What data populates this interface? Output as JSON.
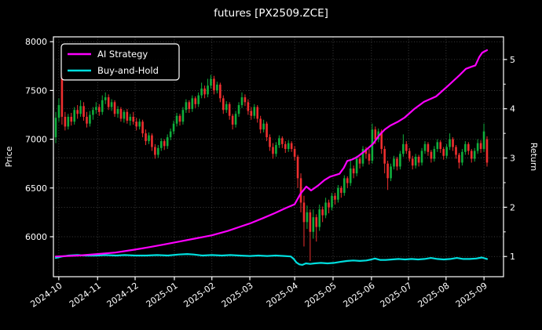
{
  "figure": {
    "title": "futures [PX2509.ZCE]",
    "background_color": "#000000",
    "text_color": "#ffffff",
    "grid_color": "#777777"
  },
  "chart_data": {
    "type": "candlestick+line",
    "title": "futures [PX2509.ZCE]",
    "grid": true,
    "legend_position": "upper-left",
    "y_left": {
      "label": "Price",
      "ticks": [
        6000,
        6500,
        7000,
        7500,
        8000
      ],
      "lim": [
        5590,
        8050
      ]
    },
    "y_right": {
      "label": "Return",
      "ticks": [
        1,
        2,
        3,
        4,
        5
      ],
      "minor_ticks": [
        1.5,
        2.5,
        3.5,
        4.5
      ],
      "lim": [
        0.59,
        5.46
      ]
    },
    "x_ticks": [
      {
        "label": "2024-10",
        "f": 0.007
      },
      {
        "label": "2024-11",
        "f": 0.097
      },
      {
        "label": "2024-12",
        "f": 0.184
      },
      {
        "label": "2025-01",
        "f": 0.275
      },
      {
        "label": "2025-02",
        "f": 0.362
      },
      {
        "label": "2025-03",
        "f": 0.45
      },
      {
        "label": "2025-04",
        "f": 0.554
      },
      {
        "label": "2025-05",
        "f": 0.643
      },
      {
        "label": "2025-06",
        "f": 0.732
      },
      {
        "label": "2025-07",
        "f": 0.818
      },
      {
        "label": "2025-08",
        "f": 0.905
      },
      {
        "label": "2025-09",
        "f": 0.993
      }
    ],
    "candle_colors": {
      "up": "#0fae3c",
      "down": "#ee2f2f"
    },
    "candles_ohlc": [
      [
        7020,
        7280,
        6960,
        7220
      ],
      [
        7220,
        7420,
        7180,
        7350
      ],
      [
        7650,
        7680,
        7150,
        7230
      ],
      [
        7230,
        7280,
        7090,
        7130
      ],
      [
        7130,
        7260,
        7100,
        7230
      ],
      [
        7230,
        7270,
        7140,
        7180
      ],
      [
        7180,
        7330,
        7150,
        7300
      ],
      [
        7300,
        7350,
        7210,
        7260
      ],
      [
        7260,
        7400,
        7230,
        7340
      ],
      [
        7340,
        7380,
        7190,
        7230
      ],
      [
        7230,
        7280,
        7120,
        7160
      ],
      [
        7160,
        7290,
        7130,
        7250
      ],
      [
        7250,
        7330,
        7200,
        7300
      ],
      [
        7300,
        7380,
        7260,
        7330
      ],
      [
        7330,
        7360,
        7240,
        7280
      ],
      [
        7280,
        7450,
        7250,
        7400
      ],
      [
        7400,
        7480,
        7360,
        7430
      ],
      [
        7430,
        7460,
        7300,
        7330
      ],
      [
        7330,
        7410,
        7290,
        7380
      ],
      [
        7380,
        7400,
        7230,
        7260
      ],
      [
        7260,
        7340,
        7220,
        7310
      ],
      [
        7310,
        7330,
        7180,
        7210
      ],
      [
        7210,
        7300,
        7170,
        7280
      ],
      [
        7280,
        7310,
        7160,
        7190
      ],
      [
        7190,
        7260,
        7140,
        7230
      ],
      [
        7230,
        7280,
        7150,
        7180
      ],
      [
        7180,
        7220,
        7090,
        7130
      ],
      [
        7130,
        7210,
        7100,
        7180
      ],
      [
        7180,
        7200,
        7020,
        7060
      ],
      [
        7060,
        7100,
        6940,
        6980
      ],
      [
        6980,
        7070,
        6950,
        7040
      ],
      [
        7040,
        7060,
        6880,
        6920
      ],
      [
        6920,
        6950,
        6800,
        6840
      ],
      [
        6840,
        6940,
        6810,
        6910
      ],
      [
        6910,
        7010,
        6880,
        6980
      ],
      [
        6980,
        7000,
        6890,
        6930
      ],
      [
        6930,
        7050,
        6900,
        7020
      ],
      [
        7020,
        7110,
        6990,
        7080
      ],
      [
        7080,
        7190,
        7050,
        7160
      ],
      [
        7160,
        7270,
        7130,
        7240
      ],
      [
        7240,
        7260,
        7140,
        7180
      ],
      [
        7180,
        7330,
        7150,
        7300
      ],
      [
        7300,
        7410,
        7270,
        7380
      ],
      [
        7380,
        7400,
        7270,
        7310
      ],
      [
        7310,
        7450,
        7280,
        7420
      ],
      [
        7420,
        7440,
        7320,
        7360
      ],
      [
        7360,
        7480,
        7330,
        7450
      ],
      [
        7450,
        7580,
        7420,
        7520
      ],
      [
        7520,
        7550,
        7420,
        7460
      ],
      [
        7460,
        7620,
        7430,
        7550
      ],
      [
        7550,
        7660,
        7520,
        7620
      ],
      [
        7620,
        7650,
        7460,
        7500
      ],
      [
        7500,
        7590,
        7470,
        7560
      ],
      [
        7560,
        7580,
        7380,
        7420
      ],
      [
        7420,
        7450,
        7260,
        7300
      ],
      [
        7300,
        7390,
        7270,
        7360
      ],
      [
        7360,
        7380,
        7200,
        7240
      ],
      [
        7240,
        7260,
        7100,
        7150
      ],
      [
        7150,
        7290,
        7120,
        7260
      ],
      [
        7260,
        7380,
        7230,
        7350
      ],
      [
        7350,
        7480,
        7320,
        7430
      ],
      [
        7430,
        7460,
        7340,
        7380
      ],
      [
        7380,
        7410,
        7250,
        7290
      ],
      [
        7290,
        7330,
        7200,
        7240
      ],
      [
        7240,
        7360,
        7210,
        7330
      ],
      [
        7330,
        7350,
        7170,
        7210
      ],
      [
        7210,
        7240,
        7060,
        7100
      ],
      [
        7100,
        7200,
        7070,
        7160
      ],
      [
        7160,
        7180,
        6980,
        7020
      ],
      [
        7020,
        7050,
        6880,
        6920
      ],
      [
        6920,
        6960,
        6800,
        6850
      ],
      [
        6850,
        6970,
        6820,
        6940
      ],
      [
        6940,
        7040,
        6910,
        7010
      ],
      [
        7010,
        7030,
        6910,
        6950
      ],
      [
        6950,
        6980,
        6860,
        6900
      ],
      [
        6900,
        6990,
        6870,
        6960
      ],
      [
        6960,
        6980,
        6870,
        6900
      ],
      [
        6900,
        6930,
        6780,
        6820
      ],
      [
        6820,
        6840,
        6500,
        6600
      ],
      [
        6600,
        6650,
        6250,
        6350
      ],
      [
        6350,
        6420,
        5900,
        6150
      ],
      [
        6150,
        6320,
        6080,
        6250
      ],
      [
        6250,
        6280,
        5750,
        6050
      ],
      [
        6050,
        6280,
        5980,
        6200
      ],
      [
        6200,
        6230,
        5950,
        6100
      ],
      [
        6100,
        6330,
        6060,
        6280
      ],
      [
        6280,
        6310,
        6150,
        6220
      ],
      [
        6220,
        6400,
        6190,
        6350
      ],
      [
        6350,
        6380,
        6240,
        6300
      ],
      [
        6300,
        6450,
        6270,
        6420
      ],
      [
        6420,
        6450,
        6330,
        6380
      ],
      [
        6380,
        6530,
        6350,
        6500
      ],
      [
        6500,
        6520,
        6400,
        6450
      ],
      [
        6450,
        6630,
        6420,
        6600
      ],
      [
        6600,
        6620,
        6500,
        6550
      ],
      [
        6550,
        6780,
        6520,
        6700
      ],
      [
        6700,
        6730,
        6600,
        6650
      ],
      [
        6650,
        6830,
        6620,
        6800
      ],
      [
        6800,
        6820,
        6700,
        6750
      ],
      [
        6750,
        6930,
        6720,
        6900
      ],
      [
        6900,
        6920,
        6800,
        6850
      ],
      [
        6850,
        6900,
        6740,
        6780
      ],
      [
        6780,
        7160,
        6750,
        7100
      ],
      [
        7100,
        7130,
        6950,
        7000
      ],
      [
        7000,
        7110,
        6970,
        7080
      ],
      [
        7080,
        7100,
        6850,
        6900
      ],
      [
        6900,
        6930,
        6650,
        6750
      ],
      [
        6750,
        6780,
        6480,
        6600
      ],
      [
        6600,
        6750,
        6570,
        6720
      ],
      [
        6720,
        6830,
        6690,
        6800
      ],
      [
        6800,
        6820,
        6680,
        6720
      ],
      [
        6720,
        6880,
        6690,
        6850
      ],
      [
        6850,
        7050,
        6820,
        6950
      ],
      [
        6950,
        6980,
        6850,
        6880
      ],
      [
        6880,
        6910,
        6770,
        6800
      ],
      [
        6800,
        6830,
        6690,
        6730
      ],
      [
        6730,
        6850,
        6700,
        6820
      ],
      [
        6820,
        6840,
        6720,
        6760
      ],
      [
        6760,
        6910,
        6730,
        6880
      ],
      [
        6880,
        6980,
        6850,
        6950
      ],
      [
        6950,
        6970,
        6830,
        6870
      ],
      [
        6870,
        6890,
        6760,
        6800
      ],
      [
        6800,
        6930,
        6770,
        6900
      ],
      [
        6900,
        7000,
        6870,
        6970
      ],
      [
        6970,
        6990,
        6860,
        6900
      ],
      [
        6900,
        6920,
        6790,
        6830
      ],
      [
        6830,
        6950,
        6800,
        6920
      ],
      [
        6920,
        7060,
        6890,
        7000
      ],
      [
        7000,
        7020,
        6880,
        6920
      ],
      [
        6920,
        6940,
        6800,
        6840
      ],
      [
        6840,
        6860,
        6700,
        6760
      ],
      [
        6760,
        6900,
        6730,
        6870
      ],
      [
        6870,
        6980,
        6840,
        6950
      ],
      [
        6950,
        6970,
        6840,
        6880
      ],
      [
        6880,
        6900,
        6760,
        6800
      ],
      [
        6800,
        6910,
        6770,
        6880
      ],
      [
        6880,
        7000,
        6850,
        6960
      ],
      [
        6960,
        6990,
        6860,
        6900
      ],
      [
        6900,
        7160,
        6870,
        7080
      ],
      [
        7000,
        7030,
        6720,
        6760
      ]
    ],
    "series": [
      {
        "name": "AI Strategy",
        "color": "#ff00ff",
        "axis": "right",
        "points": [
          [
            0.0,
            1.0
          ],
          [
            0.053,
            1.02
          ],
          [
            0.097,
            1.05
          ],
          [
            0.138,
            1.08
          ],
          [
            0.184,
            1.14
          ],
          [
            0.217,
            1.19
          ],
          [
            0.248,
            1.24
          ],
          [
            0.29,
            1.31
          ],
          [
            0.326,
            1.37
          ],
          [
            0.362,
            1.43
          ],
          [
            0.399,
            1.52
          ],
          [
            0.426,
            1.6
          ],
          [
            0.45,
            1.67
          ],
          [
            0.481,
            1.78
          ],
          [
            0.508,
            1.88
          ],
          [
            0.532,
            1.98
          ],
          [
            0.554,
            2.06
          ],
          [
            0.568,
            2.28
          ],
          [
            0.581,
            2.42
          ],
          [
            0.592,
            2.34
          ],
          [
            0.608,
            2.44
          ],
          [
            0.623,
            2.55
          ],
          [
            0.636,
            2.62
          ],
          [
            0.658,
            2.68
          ],
          [
            0.668,
            2.8
          ],
          [
            0.676,
            2.94
          ],
          [
            0.687,
            2.97
          ],
          [
            0.699,
            3.02
          ],
          [
            0.718,
            3.15
          ],
          [
            0.736,
            3.29
          ],
          [
            0.749,
            3.45
          ],
          [
            0.763,
            3.58
          ],
          [
            0.776,
            3.66
          ],
          [
            0.794,
            3.74
          ],
          [
            0.809,
            3.82
          ],
          [
            0.832,
            4.0
          ],
          [
            0.854,
            4.14
          ],
          [
            0.882,
            4.25
          ],
          [
            0.909,
            4.46
          ],
          [
            0.936,
            4.68
          ],
          [
            0.951,
            4.81
          ],
          [
            0.963,
            4.85
          ],
          [
            0.973,
            4.88
          ],
          [
            0.982,
            5.05
          ],
          [
            0.989,
            5.14
          ],
          [
            1.0,
            5.19
          ]
        ]
      },
      {
        "name": "Buy-and-Hold",
        "color": "#00dede",
        "axis": "right",
        "points": [
          [
            0.0,
            0.97
          ],
          [
            0.015,
            1.0
          ],
          [
            0.03,
            1.02
          ],
          [
            0.05,
            1.03
          ],
          [
            0.07,
            1.02
          ],
          [
            0.095,
            1.02
          ],
          [
            0.115,
            1.03
          ],
          [
            0.14,
            1.02
          ],
          [
            0.16,
            1.03
          ],
          [
            0.184,
            1.02
          ],
          [
            0.21,
            1.02
          ],
          [
            0.235,
            1.03
          ],
          [
            0.26,
            1.02
          ],
          [
            0.285,
            1.04
          ],
          [
            0.305,
            1.05
          ],
          [
            0.32,
            1.04
          ],
          [
            0.34,
            1.02
          ],
          [
            0.362,
            1.03
          ],
          [
            0.385,
            1.02
          ],
          [
            0.405,
            1.03
          ],
          [
            0.425,
            1.02
          ],
          [
            0.45,
            1.01
          ],
          [
            0.47,
            1.02
          ],
          [
            0.49,
            1.01
          ],
          [
            0.51,
            1.02
          ],
          [
            0.53,
            1.01
          ],
          [
            0.545,
            1.0
          ],
          [
            0.552,
            0.95
          ],
          [
            0.558,
            0.88
          ],
          [
            0.565,
            0.84
          ],
          [
            0.572,
            0.83
          ],
          [
            0.58,
            0.86
          ],
          [
            0.59,
            0.85
          ],
          [
            0.6,
            0.86
          ],
          [
            0.615,
            0.87
          ],
          [
            0.63,
            0.86
          ],
          [
            0.645,
            0.87
          ],
          [
            0.66,
            0.89
          ],
          [
            0.676,
            0.91
          ],
          [
            0.69,
            0.92
          ],
          [
            0.705,
            0.91
          ],
          [
            0.72,
            0.92
          ],
          [
            0.732,
            0.94
          ],
          [
            0.74,
            0.96
          ],
          [
            0.752,
            0.93
          ],
          [
            0.765,
            0.93
          ],
          [
            0.78,
            0.94
          ],
          [
            0.795,
            0.95
          ],
          [
            0.81,
            0.94
          ],
          [
            0.825,
            0.95
          ],
          [
            0.84,
            0.94
          ],
          [
            0.855,
            0.95
          ],
          [
            0.87,
            0.97
          ],
          [
            0.885,
            0.95
          ],
          [
            0.9,
            0.94
          ],
          [
            0.915,
            0.95
          ],
          [
            0.93,
            0.97
          ],
          [
            0.945,
            0.95
          ],
          [
            0.96,
            0.95
          ],
          [
            0.975,
            0.96
          ],
          [
            0.988,
            0.98
          ],
          [
            1.0,
            0.95
          ]
        ]
      }
    ]
  },
  "legend": {
    "entries": [
      {
        "label": "AI Strategy",
        "color": "#ff00ff"
      },
      {
        "label": "Buy-and-Hold",
        "color": "#00dede"
      }
    ]
  }
}
